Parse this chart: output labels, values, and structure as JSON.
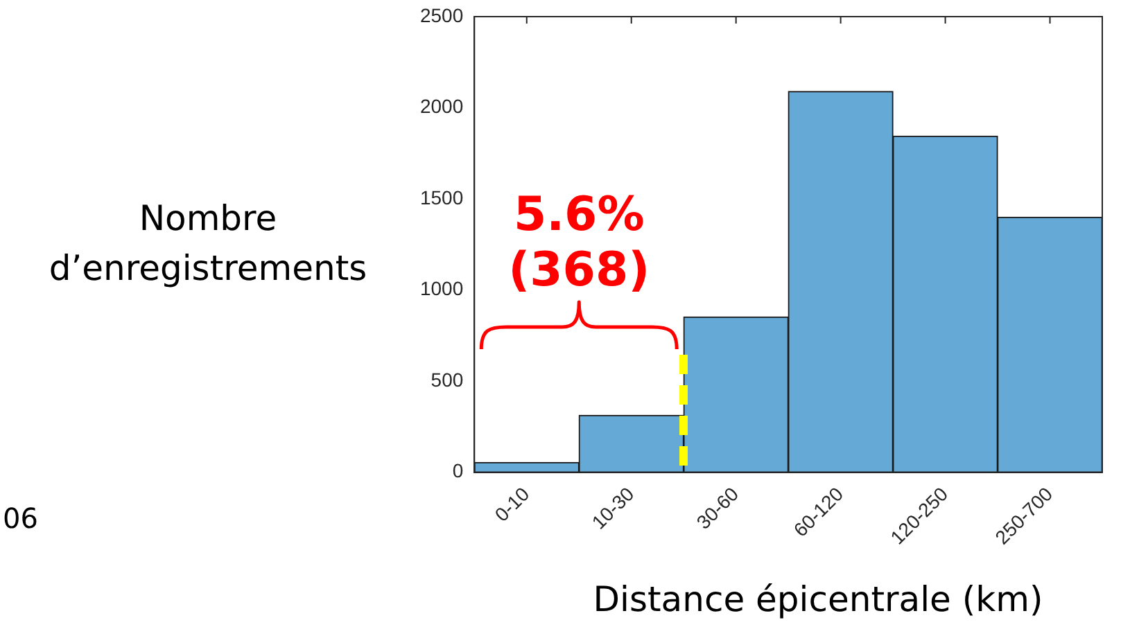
{
  "chart_data": {
    "type": "bar",
    "xlabel": "Distance épicentrale (km)",
    "ylabel": "Nombre\nd’enregistrements",
    "categories": [
      "0-10",
      "10-30",
      "30-60",
      "60-120",
      "120-250",
      "250-700"
    ],
    "values": [
      54,
      312,
      852,
      2090,
      1845,
      1400
    ],
    "color": "#65a9d7",
    "ylim": [
      0,
      2500
    ],
    "yticks": [
      0,
      500,
      1000,
      1500,
      2000,
      2500
    ],
    "annotations": [
      "5.6%\n(368)",
      "06"
    ]
  }
}
